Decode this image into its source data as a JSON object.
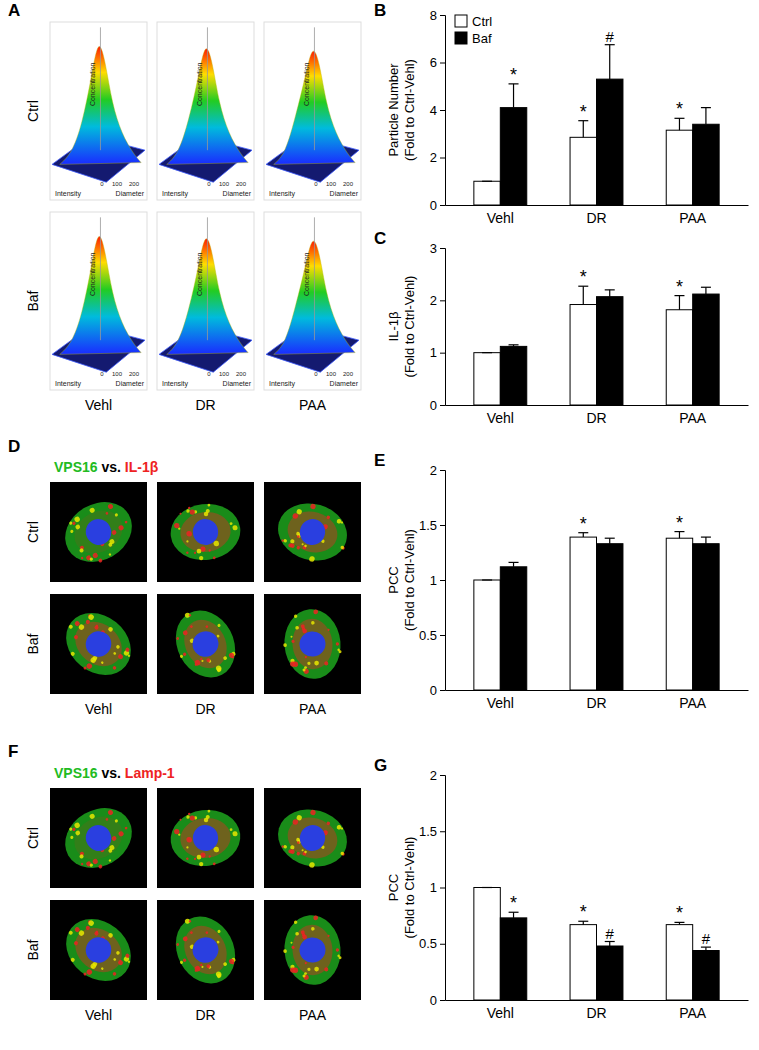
{
  "chart_data": [
    {
      "type": "bar",
      "panel": "B",
      "ylabel": [
        "Particle Number",
        "(Fold to Ctrl-Vehl)"
      ],
      "categories": [
        "Vehl",
        "DR",
        "PAA"
      ],
      "series": [
        {
          "name": "Ctrl",
          "color": "#ffffff",
          "values": [
            1,
            2.85,
            3.15
          ],
          "errors": [
            0,
            0.7,
            0.5
          ],
          "annotations": [
            null,
            "*",
            "*"
          ]
        },
        {
          "name": "Baf",
          "color": "#000000",
          "values": [
            4.1,
            5.3,
            3.4
          ],
          "errors": [
            1.0,
            1.45,
            0.7
          ],
          "annotations": [
            "*",
            "#",
            null
          ]
        }
      ],
      "ylim": [
        0,
        8
      ],
      "yticks": [
        0,
        2,
        4,
        6,
        8
      ],
      "legend": "top-left"
    },
    {
      "type": "bar",
      "panel": "C",
      "ylabel": [
        "IL-1β",
        "(Fold to Ctrl-Vehl)"
      ],
      "categories": [
        "Vehl",
        "DR",
        "PAA"
      ],
      "series": [
        {
          "name": "Ctrl",
          "color": "#ffffff",
          "values": [
            1,
            1.92,
            1.82
          ],
          "errors": [
            0,
            0.35,
            0.27
          ],
          "annotations": [
            null,
            "*",
            "*"
          ]
        },
        {
          "name": "Baf",
          "color": "#000000",
          "values": [
            1.12,
            2.07,
            2.12
          ],
          "errors": [
            0.03,
            0.13,
            0.13
          ],
          "annotations": [
            null,
            null,
            null
          ]
        }
      ],
      "ylim": [
        0,
        3
      ],
      "yticks": [
        0,
        1,
        2,
        3
      ]
    },
    {
      "type": "bar",
      "panel": "E",
      "ylabel": [
        "PCC",
        "(Fold to Ctrl-Vehl)"
      ],
      "categories": [
        "Vehl",
        "DR",
        "PAA"
      ],
      "series": [
        {
          "name": "Ctrl",
          "color": "#ffffff",
          "values": [
            1,
            1.39,
            1.38
          ],
          "errors": [
            0,
            0.04,
            0.06
          ],
          "annotations": [
            null,
            "*",
            "*"
          ]
        },
        {
          "name": "Baf",
          "color": "#000000",
          "values": [
            1.12,
            1.33,
            1.33
          ],
          "errors": [
            0.04,
            0.05,
            0.06
          ],
          "annotations": [
            null,
            null,
            null
          ]
        }
      ],
      "ylim": [
        0,
        2
      ],
      "yticks": [
        0,
        0.5,
        1,
        1.5,
        2
      ]
    },
    {
      "type": "bar",
      "panel": "G",
      "ylabel": [
        "PCC",
        "(Fold to Ctrl-Vehl)"
      ],
      "categories": [
        "Vehl",
        "DR",
        "PAA"
      ],
      "series": [
        {
          "name": "Ctrl",
          "color": "#ffffff",
          "values": [
            1,
            0.67,
            0.67
          ],
          "errors": [
            0,
            0.03,
            0.02
          ],
          "annotations": [
            null,
            "*",
            "*"
          ]
        },
        {
          "name": "Baf",
          "color": "#000000",
          "values": [
            0.73,
            0.48,
            0.44
          ],
          "errors": [
            0.05,
            0.04,
            0.03
          ],
          "annotations": [
            "*",
            "#",
            "#"
          ]
        }
      ],
      "ylim": [
        0,
        2
      ],
      "yticks": [
        0,
        0.5,
        1,
        1.5,
        2
      ]
    }
  ],
  "image_panels": [
    {
      "type": "density-plot-grid",
      "panel": "A",
      "rows": [
        "Ctrl",
        "Baf"
      ],
      "columns": [
        "Vehl",
        "DR",
        "PAA"
      ],
      "axis_titles": [
        "Concentration",
        "Intensity",
        "Diameter"
      ],
      "diameter_ticks": [
        0,
        100,
        200
      ]
    },
    {
      "type": "micrograph-grid",
      "panel": "D",
      "title": [
        {
          "text": "VPS16",
          "color": "#22bb22"
        },
        {
          "text": "vs.",
          "color": "#000000"
        },
        {
          "text": "IL-1β",
          "color": "#ee2222"
        }
      ],
      "rows": [
        "Ctrl",
        "Baf"
      ],
      "columns": [
        "Vehl",
        "DR",
        "PAA"
      ]
    },
    {
      "type": "micrograph-grid",
      "panel": "F",
      "title": [
        {
          "text": "VPS16",
          "color": "#22bb22"
        },
        {
          "text": "vs.",
          "color": "#000000"
        },
        {
          "text": "Lamp-1",
          "color": "#ee2222"
        }
      ],
      "rows": [
        "Ctrl",
        "Baf"
      ],
      "columns": [
        "Vehl",
        "DR",
        "PAA"
      ]
    }
  ]
}
